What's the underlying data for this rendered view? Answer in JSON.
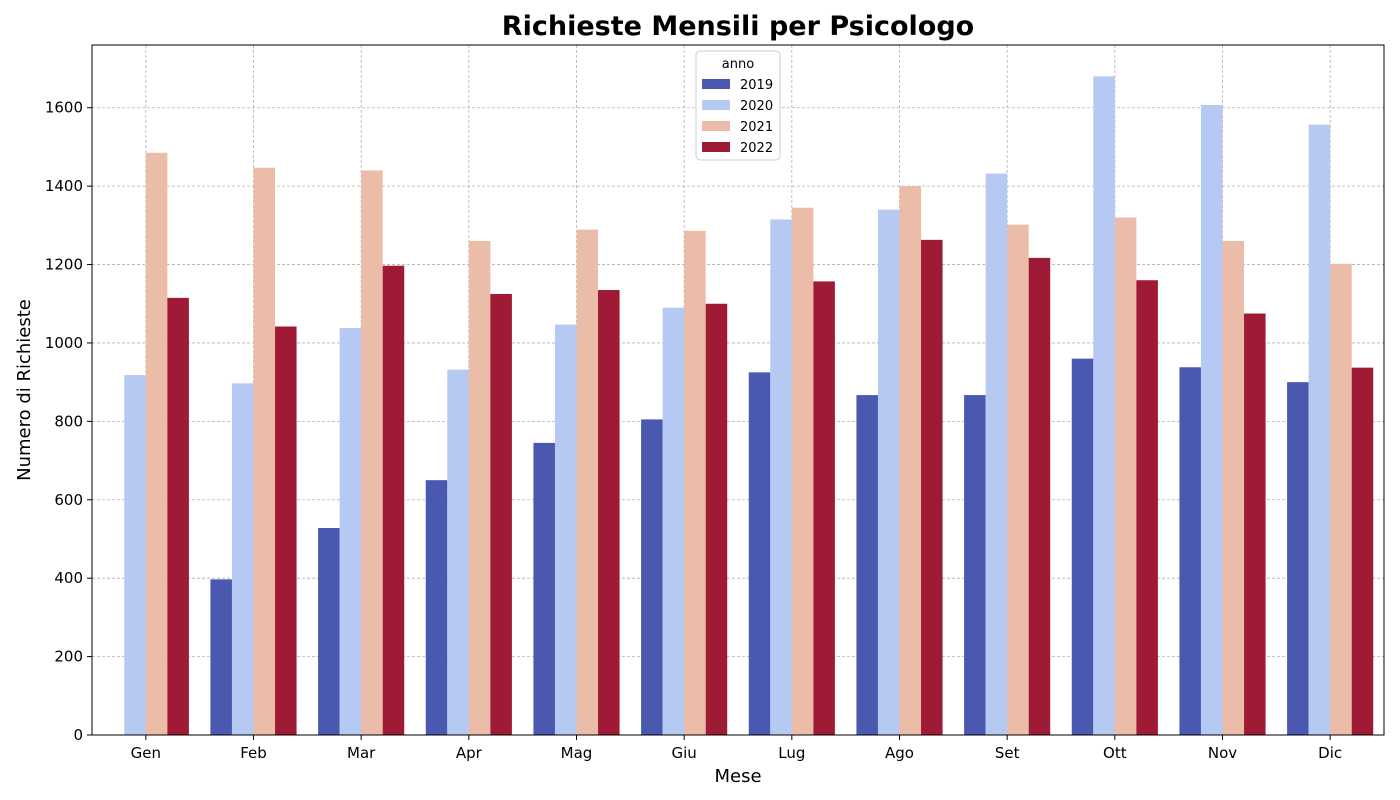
{
  "chart_data": {
    "type": "bar",
    "title": "Richieste Mensili per Psicologo",
    "xlabel": "Mese",
    "ylabel": "Numero di Richieste",
    "ylim": [
      0,
      1760
    ],
    "yticks": [
      0,
      200,
      400,
      600,
      800,
      1000,
      1200,
      1400,
      1600
    ],
    "grid": true,
    "legend_title": "anno",
    "legend_position": "top-center",
    "categories": [
      "Gen",
      "Feb",
      "Mar",
      "Apr",
      "Mag",
      "Giu",
      "Lug",
      "Ago",
      "Set",
      "Ott",
      "Nov",
      "Dic"
    ],
    "series": [
      {
        "name": "2019",
        "color": "#4a58b0",
        "values": [
          0,
          397,
          528,
          650,
          745,
          805,
          925,
          867,
          867,
          960,
          938,
          900
        ]
      },
      {
        "name": "2020",
        "color": "#b5c9f2",
        "values": [
          918,
          897,
          1038,
          932,
          1047,
          1090,
          1315,
          1340,
          1432,
          1680,
          1607,
          1557
        ]
      },
      {
        "name": "2021",
        "color": "#ebbda9",
        "values": [
          1485,
          1447,
          1440,
          1260,
          1289,
          1286,
          1345,
          1400,
          1302,
          1320,
          1260,
          1202
        ]
      },
      {
        "name": "2022",
        "color": "#9e1a35",
        "values": [
          1115,
          1042,
          1197,
          1125,
          1135,
          1100,
          1157,
          1263,
          1217,
          1160,
          1075,
          937
        ]
      }
    ]
  }
}
